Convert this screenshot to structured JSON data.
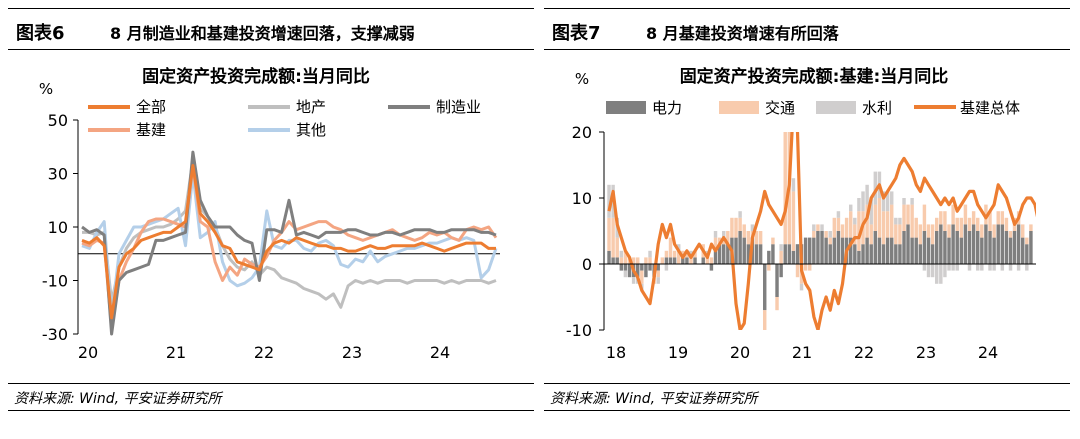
{
  "panels": [
    {
      "figure_label": "图表6",
      "caption": "8 月制造业和基建投资增速回落，支撑减弱",
      "source": "资料来源: Wind, 平安证券研究所"
    },
    {
      "figure_label": "图表7",
      "caption": "8 月基建投资增速有所回落",
      "source": "资料来源: Wind, 平安证券研究所"
    }
  ],
  "chart_data": [
    {
      "type": "line",
      "title": "固定资产投资完成额:当月同比",
      "ylabel": "%",
      "ylim": [
        -30,
        50
      ],
      "yticks": [
        "50",
        "30",
        "10",
        "-10",
        "-30"
      ],
      "xticks": [
        "20",
        "21",
        "22",
        "23",
        "24"
      ],
      "legend_placement": "top",
      "grid": false,
      "series": [
        {
          "name": "全部",
          "color": "#ED7D31",
          "values": [
            5,
            4,
            6,
            3,
            -24,
            -5,
            0,
            2,
            5,
            6,
            7,
            8,
            8,
            10,
            12,
            33,
            15,
            12,
            8,
            3,
            2,
            -3,
            -4,
            -5,
            -6,
            1,
            4,
            5,
            4,
            6,
            5,
            4,
            3,
            3,
            2,
            2,
            1,
            1,
            2,
            3,
            2,
            2,
            3,
            3,
            3,
            3,
            4,
            3,
            2,
            1,
            2,
            3,
            4,
            4,
            4,
            2,
            2
          ]
        },
        {
          "name": "地产",
          "color": "#BFBFBF",
          "values": [
            8,
            8,
            7,
            8,
            -18,
            -5,
            2,
            6,
            8,
            9,
            10,
            10,
            11,
            13,
            16,
            35,
            17,
            14,
            10,
            3,
            -2,
            -5,
            -6,
            -3,
            -8,
            -5,
            -6,
            -9,
            -10,
            -11,
            -13,
            -14,
            -15,
            -17,
            -15,
            -20,
            -12,
            -10,
            -11,
            -10,
            -11,
            -10,
            -10,
            -10,
            -11,
            -10,
            -10,
            -10,
            -10,
            -11,
            -10,
            -11,
            -10,
            -10,
            -10,
            -11,
            -10
          ]
        },
        {
          "name": "制造业",
          "color": "#7F7F7F",
          "values": [
            10,
            8,
            9,
            7,
            -30,
            -10,
            -7,
            -6,
            -5,
            -4,
            5,
            5,
            6,
            7,
            8,
            38,
            20,
            14,
            10,
            10,
            10,
            7,
            5,
            4,
            -10,
            9,
            9,
            8,
            20,
            7,
            8,
            7,
            6,
            8,
            8,
            8,
            9,
            9,
            8,
            7,
            7,
            8,
            8,
            7,
            8,
            9,
            9,
            9,
            8,
            8,
            9,
            9,
            9,
            9,
            8,
            8,
            7
          ]
        },
        {
          "name": "基建",
          "color": "#F4A582",
          "values": [
            4,
            3,
            5,
            4,
            -28,
            -10,
            -3,
            2,
            8,
            12,
            13,
            13,
            12,
            11,
            10,
            33,
            12,
            10,
            -3,
            -10,
            -5,
            -8,
            -2,
            -4,
            -5,
            -1,
            5,
            8,
            12,
            9,
            10,
            11,
            12,
            12,
            10,
            9,
            7,
            6,
            5,
            6,
            7,
            8,
            9,
            7,
            6,
            5,
            6,
            8,
            7,
            8,
            6,
            5,
            9,
            10,
            9,
            10,
            6
          ]
        },
        {
          "name": "其他",
          "color": "#B4CFE9",
          "values": [
            3,
            2,
            8,
            12,
            -24,
            0,
            5,
            10,
            10,
            11,
            12,
            13,
            15,
            17,
            3,
            30,
            6,
            8,
            12,
            -3,
            -10,
            -12,
            -11,
            -9,
            -5,
            16,
            3,
            2,
            5,
            5,
            2,
            1,
            4,
            5,
            3,
            -4,
            -5,
            -2,
            -3,
            1,
            -3,
            -1,
            0,
            1,
            2,
            2,
            3,
            4,
            4,
            5,
            6,
            5,
            6,
            5,
            -9,
            -6,
            2
          ]
        }
      ]
    },
    {
      "type": "bar",
      "title": "固定资产投资完成额:基建:当月同比",
      "ylabel": "%",
      "ylim": [
        -10,
        20
      ],
      "yticks": [
        "20",
        "10",
        "0",
        "-10"
      ],
      "xticks": [
        "18",
        "19",
        "20",
        "21",
        "22",
        "23",
        "24"
      ],
      "legend_placement": "top",
      "grid": false,
      "series": [
        {
          "name": "电力",
          "color": "#7F7F7F",
          "kind": "bar",
          "values": [
            2,
            1,
            1,
            -1,
            -1,
            -2,
            -2,
            -2,
            -1,
            -2,
            -1,
            -2,
            -1,
            0,
            1,
            1,
            1,
            0,
            1,
            1,
            0,
            1,
            0,
            1,
            0,
            -1,
            2,
            3,
            3,
            3,
            4,
            4,
            5,
            4,
            3,
            4,
            3,
            3,
            -7,
            2,
            3,
            -5,
            -2,
            3,
            3,
            2,
            3,
            3,
            4,
            4,
            4,
            5,
            5,
            4,
            3,
            4,
            5,
            4,
            4,
            4,
            3,
            2,
            3,
            4,
            3,
            5,
            4,
            3,
            4,
            4,
            3,
            3,
            5,
            6,
            4,
            4,
            3,
            5,
            4,
            3,
            5,
            6,
            5,
            4,
            6,
            5,
            4,
            6,
            5,
            6,
            5,
            4,
            6,
            5,
            4,
            6,
            6,
            5,
            4,
            5,
            6,
            4,
            3,
            5
          ]
        },
        {
          "name": "交通",
          "color": "#F8CBAD",
          "kind": "bar",
          "values": [
            5,
            6,
            3,
            1,
            2,
            1,
            1,
            1,
            -2,
            1,
            1,
            -1,
            -1,
            1,
            1,
            3,
            1,
            2,
            1,
            1,
            1,
            1,
            0,
            2,
            1,
            1,
            2,
            1,
            1,
            2,
            3,
            3,
            2,
            2,
            2,
            1,
            2,
            2,
            -4,
            -1,
            1,
            -2,
            2,
            20,
            22,
            9,
            -2,
            -3,
            -1,
            -1,
            1,
            1,
            0,
            1,
            1,
            3,
            2,
            2,
            3,
            4,
            3,
            6,
            5,
            5,
            3,
            4,
            6,
            5,
            4,
            5,
            3,
            3,
            4,
            3,
            5,
            3,
            3,
            4,
            2,
            3,
            2,
            2,
            3,
            2,
            3,
            2,
            3,
            3,
            2,
            2,
            2,
            2,
            3,
            3,
            2,
            2,
            2,
            2,
            1,
            2,
            2,
            2,
            1,
            1
          ]
        },
        {
          "name": "水利",
          "color": "#D0CECE",
          "kind": "bar",
          "values": [
            5,
            5,
            3,
            1,
            -1,
            0,
            -1,
            -1,
            -1,
            0,
            1,
            0,
            -1,
            0,
            -1,
            0,
            0,
            1,
            0,
            0,
            1,
            0,
            0,
            0,
            1,
            0,
            1,
            0,
            1,
            0,
            0,
            0,
            1,
            0,
            0,
            1,
            0,
            0,
            0,
            0,
            0,
            0,
            1,
            1,
            1,
            2,
            0,
            -1,
            0,
            0,
            1,
            0,
            1,
            0,
            1,
            0,
            1,
            0,
            0,
            1,
            1,
            2,
            3,
            3,
            4,
            5,
            4,
            3,
            3,
            2,
            1,
            1,
            1,
            0,
            1,
            0,
            0,
            -1,
            -2,
            -2,
            -3,
            -3,
            -2,
            -1,
            -1,
            -1,
            0,
            0,
            -1,
            0,
            -1,
            -1,
            0,
            -1,
            -1,
            0,
            -1,
            0,
            -1,
            0,
            -1,
            0,
            -1,
            0
          ]
        },
        {
          "name": "基建总体",
          "color": "#ED7D31",
          "kind": "line",
          "values": [
            8,
            11,
            6,
            4,
            2,
            1,
            -1,
            -2,
            -4,
            -5,
            -6,
            -2,
            3,
            6,
            4,
            6,
            3,
            2,
            1,
            2,
            1,
            2,
            3,
            2,
            1,
            3,
            2,
            3,
            4,
            3,
            2,
            -6,
            -10,
            -9,
            -3,
            4,
            6,
            8,
            11,
            9,
            8,
            7,
            6,
            8,
            12,
            24,
            20,
            -1,
            -3,
            -4,
            -8,
            -10,
            -7,
            -5,
            -7,
            -4,
            -6,
            -3,
            2,
            3,
            4,
            4,
            6,
            7,
            10,
            11,
            12,
            10,
            11,
            12,
            13,
            15,
            16,
            15,
            14,
            12,
            11,
            13,
            12,
            11,
            10,
            9,
            10,
            9,
            10,
            8,
            9,
            10,
            11,
            11,
            9,
            8,
            7,
            8,
            9,
            12,
            11,
            10,
            8,
            6,
            7,
            9,
            10,
            10,
            9,
            6
          ]
        }
      ]
    }
  ]
}
